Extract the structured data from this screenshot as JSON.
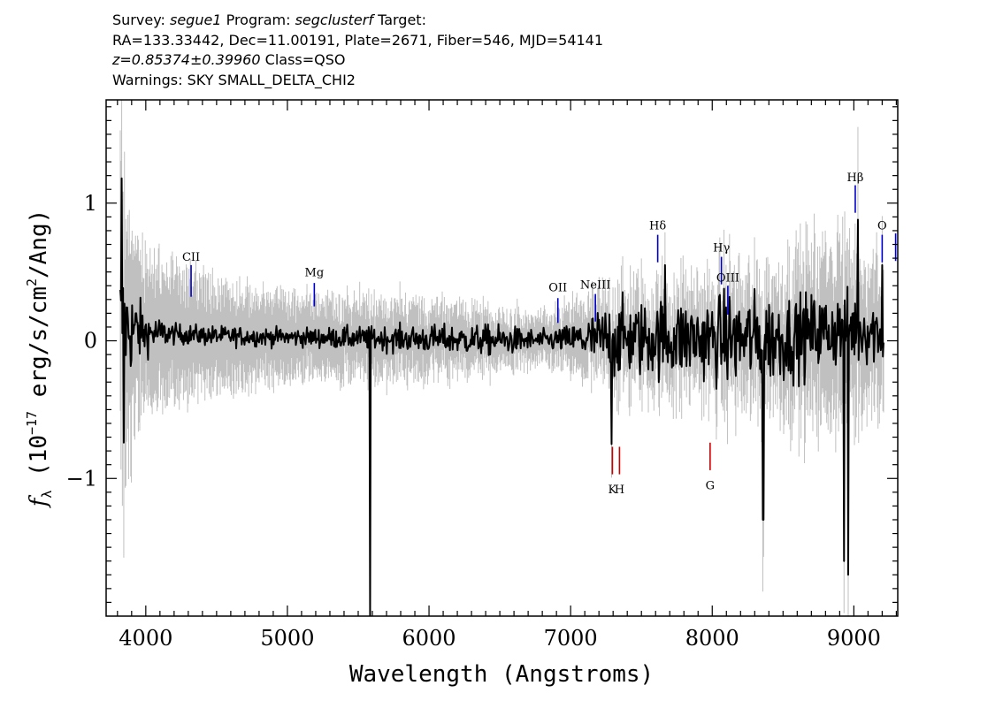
{
  "header": {
    "line1": {
      "survey_label": "Survey:",
      "survey": "segue1",
      "program_label": "Program:",
      "program": "segclusterf",
      "target_label": "Target:"
    },
    "line2": "RA=133.33442, Dec=11.00191, Plate=2671, Fiber=546, MJD=54141",
    "line3": {
      "z": "z=0.85374±0.39960",
      "class": "Class=QSO"
    },
    "line4": "Warnings: SKY SMALL_DELTA_CHI2"
  },
  "chart_data": {
    "type": "line",
    "title": "",
    "xlabel": "Wavelength (Angstroms)",
    "ylabel": {
      "prefix": "f",
      "sub": "λ",
      "text1": " (10",
      "exp1": "−17",
      "text2": " erg/s/cm",
      "exp2": "2",
      "text3": "/Ang)"
    },
    "xlim": [
      3720,
      9310
    ],
    "ylim": [
      -2.0,
      1.75
    ],
    "x_ticks": [
      4000,
      5000,
      6000,
      7000,
      8000,
      9000
    ],
    "x_tick_labels": [
      "4000",
      "5000",
      "6000",
      "7000",
      "8000",
      "9000"
    ],
    "y_ticks": [
      -1,
      0,
      1
    ],
    "y_tick_labels": [
      "−1",
      "0",
      "1"
    ],
    "series": [
      {
        "role": "flux",
        "color": "#000000",
        "x_start": 3820,
        "x_end": 9210,
        "envelope": [
          [
            3820,
            0.15,
            0.65
          ],
          [
            3900,
            0.05,
            0.4
          ],
          [
            4000,
            0.08,
            0.25
          ],
          [
            4200,
            0.1,
            0.18
          ],
          [
            4500,
            0.06,
            0.14
          ],
          [
            5000,
            0.04,
            0.11
          ],
          [
            5500,
            0.01,
            0.1
          ],
          [
            6000,
            -0.02,
            0.09
          ],
          [
            6500,
            -0.05,
            0.07
          ],
          [
            6800,
            -0.03,
            0.05
          ],
          [
            7000,
            -0.02,
            0.09
          ],
          [
            7300,
            -0.12,
            0.18
          ],
          [
            7600,
            -0.1,
            0.2
          ],
          [
            7900,
            -0.12,
            0.2
          ],
          [
            8200,
            -0.15,
            0.22
          ],
          [
            8500,
            -0.12,
            0.22
          ],
          [
            8800,
            0.05,
            0.35
          ],
          [
            9000,
            0.12,
            0.42
          ],
          [
            9210,
            0.05,
            0.3
          ]
        ],
        "features": [
          {
            "x": 3830,
            "y": 1.18
          },
          {
            "x": 3845,
            "y": -0.74
          },
          {
            "x": 5585,
            "y": -2.0
          },
          {
            "x": 7290,
            "y": -0.75
          },
          {
            "x": 7665,
            "y": 0.55
          },
          {
            "x": 8360,
            "y": -1.3
          },
          {
            "x": 8930,
            "y": -1.6
          },
          {
            "x": 8960,
            "y": -1.7
          },
          {
            "x": 9030,
            "y": 0.88
          },
          {
            "x": 9200,
            "y": 0.55
          },
          {
            "x": 9215,
            "y": -0.15
          }
        ]
      },
      {
        "role": "error",
        "color": "#c0c0c0",
        "band_scale": [
          [
            3820,
            1.0
          ],
          [
            3900,
            0.65
          ],
          [
            4000,
            0.45
          ],
          [
            4500,
            0.32
          ],
          [
            5000,
            0.25
          ],
          [
            6000,
            0.22
          ],
          [
            6800,
            0.14
          ],
          [
            7000,
            0.2
          ],
          [
            7600,
            0.3
          ],
          [
            8000,
            0.32
          ],
          [
            8500,
            0.4
          ],
          [
            8900,
            0.55
          ],
          [
            9210,
            0.45
          ]
        ]
      }
    ],
    "line_markers": [
      {
        "label": "CII",
        "x": 4320,
        "y0": 0.32,
        "y1": 0.55,
        "label_y": 0.58,
        "color": "#0000cc",
        "pos": "above"
      },
      {
        "label": "Mg",
        "x": 5190,
        "y0": 0.25,
        "y1": 0.42,
        "label_y": 0.47,
        "color": "#0000cc",
        "pos": "above"
      },
      {
        "label": "OII",
        "x": 6910,
        "y0": 0.13,
        "y1": 0.31,
        "label_y": 0.36,
        "color": "#0000cc",
        "pos": "above"
      },
      {
        "label": "NeIII",
        "x": 7175,
        "y0": 0.14,
        "y1": 0.34,
        "label_y": 0.38,
        "color": "#0000cc",
        "pos": "above"
      },
      {
        "label": "Hδ",
        "x": 7615,
        "y0": 0.57,
        "y1": 0.77,
        "label_y": 0.81,
        "color": "#0000cc",
        "pos": "above"
      },
      {
        "label": "Hγ",
        "x": 8065,
        "y0": 0.41,
        "y1": 0.61,
        "label_y": 0.65,
        "color": "#0000cc",
        "pos": "above"
      },
      {
        "label": "OIII",
        "x": 8110,
        "y0": 0.19,
        "y1": 0.4,
        "label_y": 0.43,
        "color": "#0000cc",
        "pos": "above"
      },
      {
        "label": "Hβ",
        "x": 9010,
        "y0": 0.93,
        "y1": 1.13,
        "label_y": 1.16,
        "color": "#0000cc",
        "pos": "above"
      },
      {
        "label": "O",
        "x": 9200,
        "y0": 0.57,
        "y1": 0.77,
        "label_y": 0.81,
        "color": "#0000cc",
        "pos": "above"
      },
      {
        "label": "",
        "x": 9295,
        "y0": 0.58,
        "y1": 0.78,
        "label_y": 0.81,
        "color": "#0000cc",
        "pos": "above"
      },
      {
        "label": "K",
        "x": 7295,
        "y0": -0.77,
        "y1": -0.97,
        "label_y": -1.07,
        "color": "#cc0000",
        "pos": "below"
      },
      {
        "label": "H",
        "x": 7345,
        "y0": -0.77,
        "y1": -0.97,
        "label_y": -1.07,
        "color": "#cc0000",
        "pos": "below"
      },
      {
        "label": "G",
        "x": 7985,
        "y0": -0.74,
        "y1": -0.94,
        "label_y": -1.04,
        "color": "#cc0000",
        "pos": "below"
      }
    ]
  }
}
